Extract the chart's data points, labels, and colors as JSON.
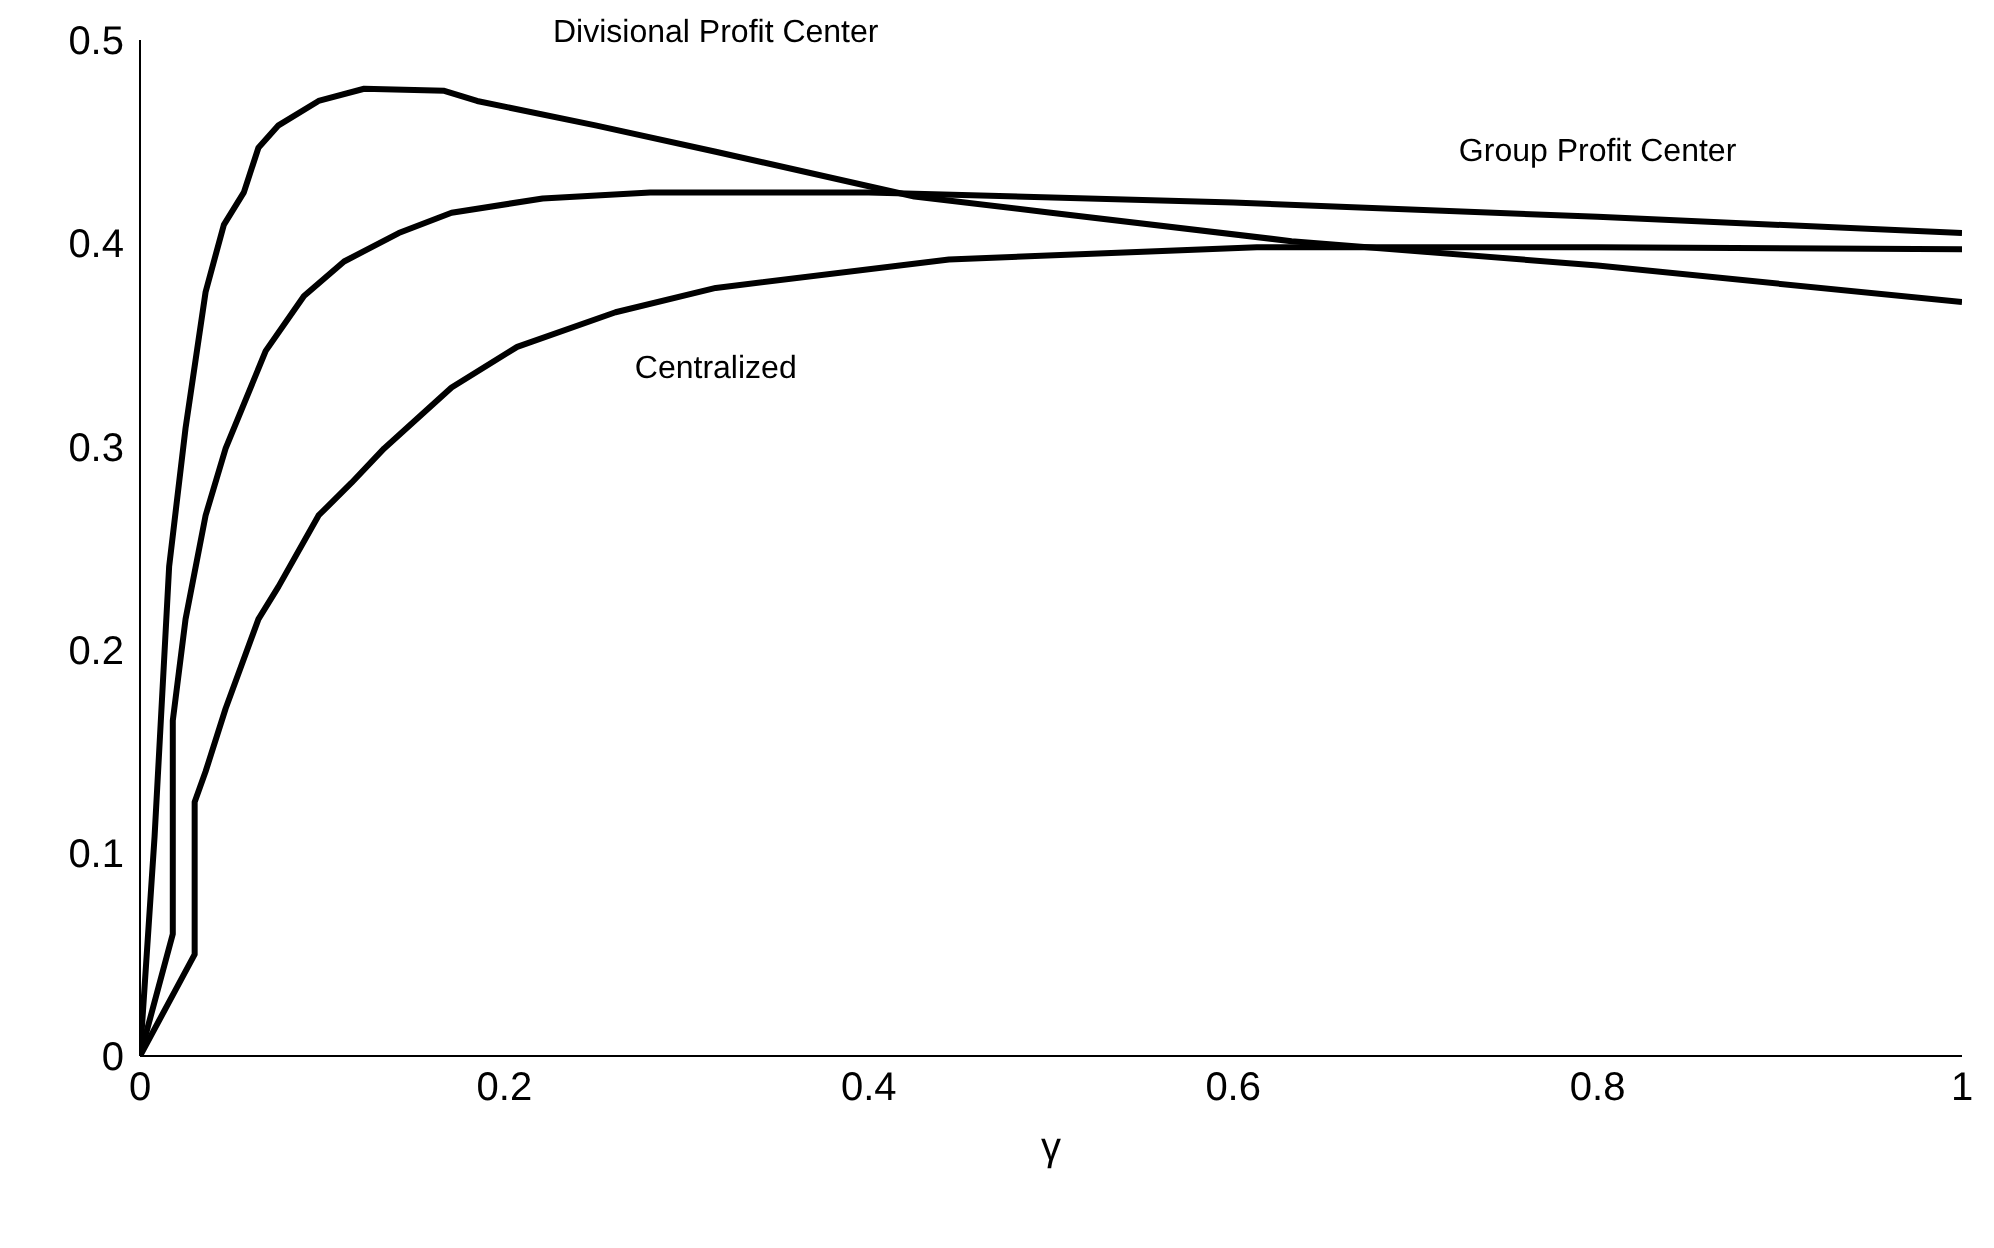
{
  "chart_data": {
    "type": "line",
    "xlabel": "γ",
    "xlim": [
      0,
      1
    ],
    "xticks": [
      0,
      0.2,
      0.4,
      0.6,
      0.8,
      1
    ],
    "ylim": [
      0,
      0.5
    ],
    "yticks": [
      0,
      0.1,
      0.2,
      0.3,
      0.4,
      0.5
    ],
    "grid": false,
    "legend": false,
    "marker": "none",
    "line_style": "solid",
    "series": [
      {
        "name": "Divisional Profit Center",
        "color": "#000000",
        "x": [
          0,
          0.008,
          0.016,
          0.025,
          0.036,
          0.046,
          0.057,
          0.065,
          0.076,
          0.098,
          0.123,
          0.167,
          0.185,
          0.25,
          0.316,
          0.425,
          0.5,
          0.632,
          0.8,
          1
        ],
        "values": [
          0,
          0.108,
          0.241,
          0.309,
          0.376,
          0.409,
          0.425,
          0.447,
          0.458,
          0.47,
          0.476,
          0.475,
          0.47,
          0.458,
          0.445,
          0.423,
          0.415,
          0.401,
          0.389,
          0.371
        ]
      },
      {
        "name": "Group Profit Center",
        "color": "#000000",
        "x": [
          0,
          0.018,
          0.018,
          0.025,
          0.036,
          0.047,
          0.069,
          0.09,
          0.112,
          0.142,
          0.171,
          0.221,
          0.28,
          0.4,
          0.6,
          0.8,
          1
        ],
        "values": [
          0,
          0.06,
          0.165,
          0.215,
          0.266,
          0.299,
          0.347,
          0.374,
          0.391,
          0.405,
          0.415,
          0.422,
          0.425,
          0.425,
          0.42,
          0.413,
          0.405
        ]
      },
      {
        "name": "Centralized",
        "color": "#000000",
        "x": [
          0,
          0.03,
          0.03,
          0.036,
          0.047,
          0.065,
          0.076,
          0.098,
          0.116,
          0.134,
          0.171,
          0.207,
          0.261,
          0.316,
          0.444,
          0.613,
          0.8,
          1
        ],
        "values": [
          0,
          0.05,
          0.125,
          0.14,
          0.171,
          0.215,
          0.231,
          0.266,
          0.282,
          0.299,
          0.329,
          0.349,
          0.366,
          0.378,
          0.392,
          0.398,
          0.398,
          0.397
        ]
      }
    ]
  }
}
